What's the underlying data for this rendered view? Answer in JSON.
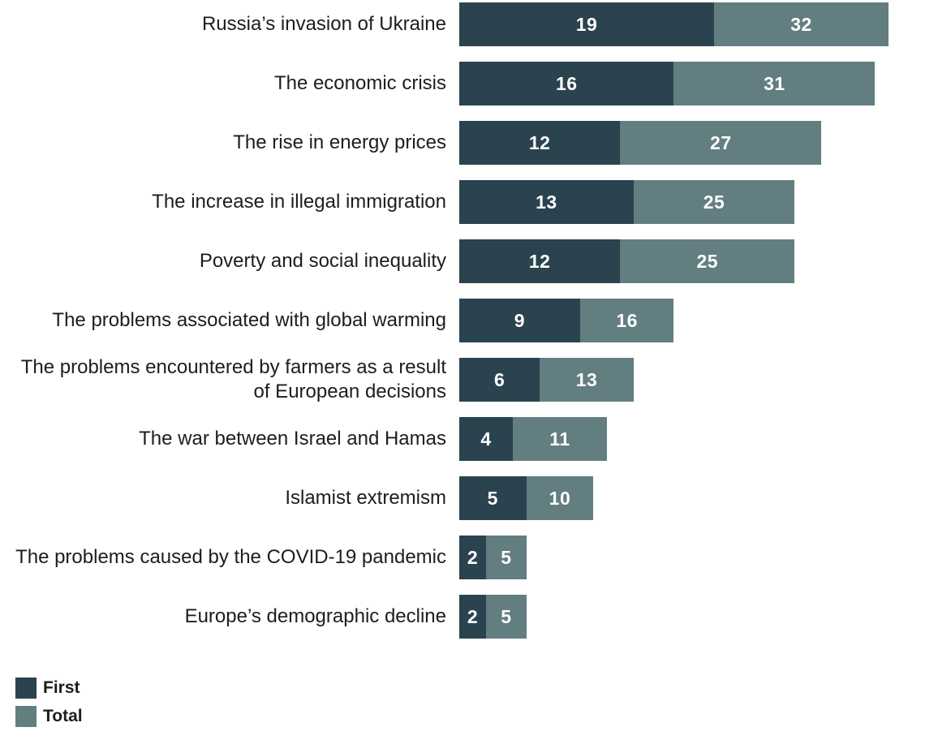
{
  "chart_data": {
    "type": "bar",
    "orientation": "horizontal",
    "stacked": true,
    "title": "",
    "xlabel": "",
    "ylabel": "",
    "xlim": [
      0,
      32
    ],
    "grid": false,
    "legend_position": "bottom-left",
    "bar_label_color": "#ffffff",
    "note": "Bar full length equals Total value; dark leading segment equals First value; light remainder is labeled with the Total value.",
    "categories": [
      "Russia’s invasion of Ukraine",
      "The economic crisis",
      "The rise in energy prices",
      "The increase in illegal immigration",
      "Poverty and social inequality",
      "The problems associated with global warming",
      "The problems encountered by farmers as a result of European decisions",
      "The war between Israel and Hamas",
      "Islamist extremism",
      "The problems caused by the COVID-19 pandemic",
      "Europe’s demographic decline"
    ],
    "series": [
      {
        "name": "First",
        "color": "#2a434f",
        "values": [
          19,
          16,
          12,
          13,
          12,
          9,
          6,
          4,
          5,
          2,
          2
        ]
      },
      {
        "name": "Total",
        "color": "#627e80",
        "values": [
          32,
          31,
          27,
          25,
          25,
          16,
          13,
          11,
          10,
          5,
          5
        ]
      }
    ]
  },
  "legend": {
    "items": [
      {
        "label": "First",
        "color": "#2a434f"
      },
      {
        "label": "Total",
        "color": "#627e80"
      }
    ]
  }
}
